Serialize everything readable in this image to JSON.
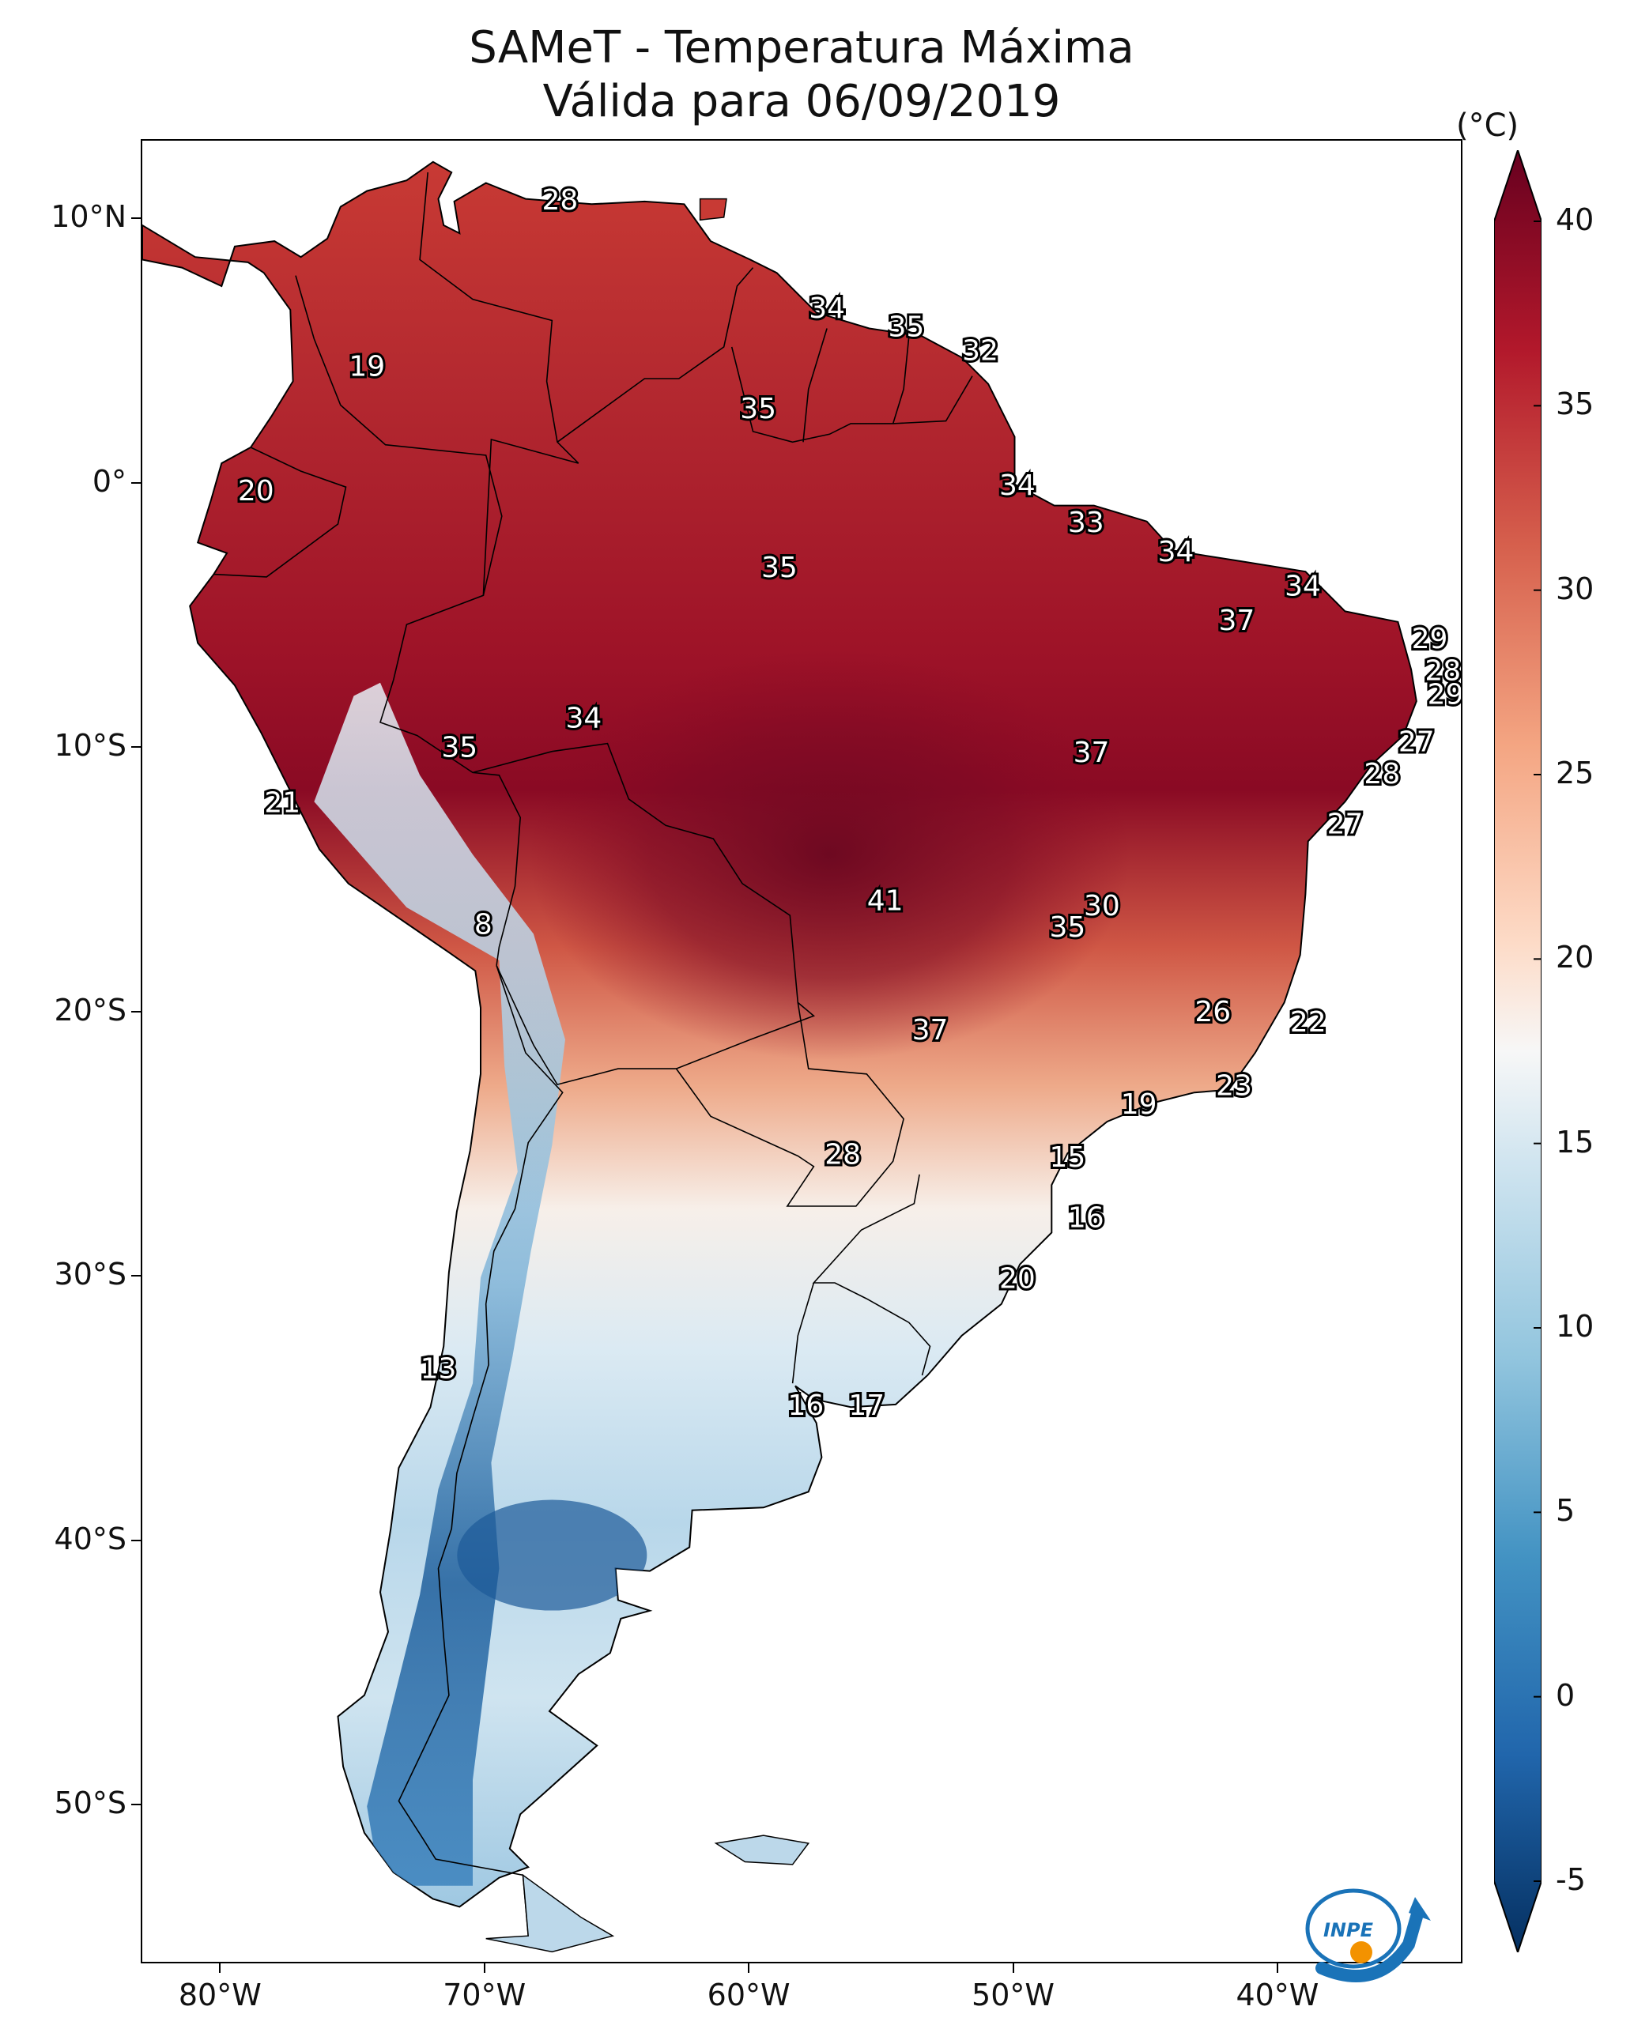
{
  "title": {
    "line1": "SAMeT - Temperatura Máxima",
    "line2": "Válida para 06/09/2019"
  },
  "axes": {
    "lat_labels": [
      {
        "value": 10,
        "text": "10°N"
      },
      {
        "value": 0,
        "text": "0°"
      },
      {
        "value": -10,
        "text": "10°S"
      },
      {
        "value": -20,
        "text": "20°S"
      },
      {
        "value": -30,
        "text": "30°S"
      },
      {
        "value": -40,
        "text": "40°S"
      },
      {
        "value": -50,
        "text": "50°S"
      }
    ],
    "lon_labels": [
      {
        "value": -80,
        "text": "80°W"
      },
      {
        "value": -70,
        "text": "70°W"
      },
      {
        "value": -60,
        "text": "60°W"
      },
      {
        "value": -50,
        "text": "50°W"
      },
      {
        "value": -40,
        "text": "40°W"
      }
    ],
    "lon_range": [
      -83,
      -33
    ],
    "lat_range": [
      -56,
      13
    ]
  },
  "colorbar": {
    "unit": "(°C)",
    "min": -5,
    "max": 40,
    "ticks": [
      "-5",
      "0",
      "5",
      "10",
      "15",
      "20",
      "25",
      "30",
      "35",
      "40"
    ],
    "colormap": "RdBu_r",
    "extend": "both"
  },
  "station_labels": [
    {
      "text": "28",
      "lon": -67.2,
      "lat": 10.7
    },
    {
      "text": "19",
      "lon": -74.5,
      "lat": 4.4
    },
    {
      "text": "34",
      "lon": -57.1,
      "lat": 6.6
    },
    {
      "text": "35",
      "lon": -54.1,
      "lat": 5.9
    },
    {
      "text": "32",
      "lon": -51.3,
      "lat": 5.0
    },
    {
      "text": "35",
      "lon": -59.7,
      "lat": 2.8
    },
    {
      "text": "20",
      "lon": -78.7,
      "lat": -0.3
    },
    {
      "text": "34",
      "lon": -49.9,
      "lat": -0.1
    },
    {
      "text": "33",
      "lon": -47.3,
      "lat": -1.5
    },
    {
      "text": "34",
      "lon": -43.9,
      "lat": -2.6
    },
    {
      "text": "35",
      "lon": -58.9,
      "lat": -3.2
    },
    {
      "text": "34",
      "lon": -39.1,
      "lat": -3.9
    },
    {
      "text": "37",
      "lon": -41.6,
      "lat": -5.2
    },
    {
      "text": "29",
      "lon": -34.3,
      "lat": -5.9
    },
    {
      "text": "28",
      "lon": -33.8,
      "lat": -7.1
    },
    {
      "text": "29",
      "lon": -33.7,
      "lat": -8.0
    },
    {
      "text": "34",
      "lon": -66.3,
      "lat": -8.9
    },
    {
      "text": "35",
      "lon": -71.0,
      "lat": -10.0
    },
    {
      "text": "27",
      "lon": -34.8,
      "lat": -9.8
    },
    {
      "text": "37",
      "lon": -47.1,
      "lat": -10.2
    },
    {
      "text": "28",
      "lon": -36.1,
      "lat": -11.0
    },
    {
      "text": "21",
      "lon": -77.7,
      "lat": -12.1
    },
    {
      "text": "27",
      "lon": -37.5,
      "lat": -12.9
    },
    {
      "text": "41",
      "lon": -54.9,
      "lat": -15.8
    },
    {
      "text": "30",
      "lon": -46.7,
      "lat": -16.0
    },
    {
      "text": "35",
      "lon": -48.0,
      "lat": -16.8
    },
    {
      "text": "8",
      "lon": -70.1,
      "lat": -16.7
    },
    {
      "text": "26",
      "lon": -42.5,
      "lat": -20.0
    },
    {
      "text": "22",
      "lon": -38.9,
      "lat": -20.4
    },
    {
      "text": "37",
      "lon": -53.2,
      "lat": -20.7
    },
    {
      "text": "23",
      "lon": -41.7,
      "lat": -22.8
    },
    {
      "text": "19",
      "lon": -45.3,
      "lat": -23.5
    },
    {
      "text": "28",
      "lon": -56.5,
      "lat": -25.4
    },
    {
      "text": "15",
      "lon": -48.0,
      "lat": -25.5
    },
    {
      "text": "16",
      "lon": -47.3,
      "lat": -27.8
    },
    {
      "text": "20",
      "lon": -49.9,
      "lat": -30.1
    },
    {
      "text": "13",
      "lon": -71.8,
      "lat": -33.5
    },
    {
      "text": "16",
      "lon": -57.9,
      "lat": -34.9
    },
    {
      "text": "17",
      "lon": -55.6,
      "lat": -34.9
    }
  ],
  "logo": {
    "text": "INPE"
  },
  "colors": {
    "hot": "#67001f",
    "warm": "#d6604d",
    "neutral": "#f7f7f7",
    "cool": "#4393c3",
    "cold": "#053061",
    "logo_blue": "#1a73b8",
    "logo_orange": "#f39200"
  }
}
